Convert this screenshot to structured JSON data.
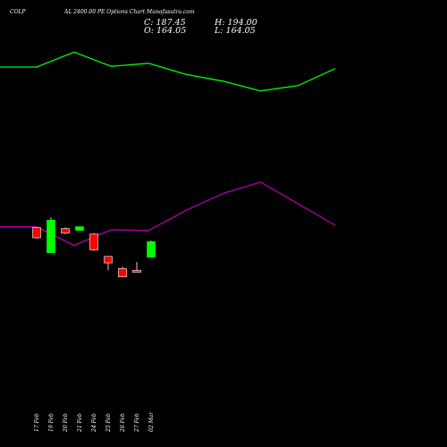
{
  "header": {
    "symbol": "COLP",
    "title": "AL 2400.00 PE Options Chart Munafasutra.com",
    "close": "C: 187.45",
    "high": "H: 194.00",
    "open": "O: 164.05",
    "low": "L: 164.05"
  },
  "chart_data": {
    "type": "candlestick",
    "title": "AL 2400.00 PE Options Chart Munafasutra.com",
    "categories": [
      "17 Feb",
      "19 Feb",
      "20 Feb",
      "21 Feb",
      "24 Feb",
      "25 Feb",
      "26 Feb",
      "27 Feb",
      "02 Mar"
    ],
    "price_range": [
      115,
      240
    ],
    "candles": [
      {
        "open": 226,
        "close": 215,
        "high": 226,
        "low": 214
      },
      {
        "open": 199,
        "close": 234,
        "high": 237,
        "low": 199
      },
      {
        "open": 225,
        "close": 220,
        "high": 226,
        "low": 219
      },
      {
        "open": 223,
        "close": 227,
        "high": 227,
        "low": 223
      },
      {
        "open": 219,
        "close": 202,
        "high": 220,
        "low": 201
      },
      {
        "open": 195,
        "close": 188,
        "high": 195,
        "low": 180
      },
      {
        "open": 182,
        "close": 173,
        "high": 184,
        "low": 173
      },
      {
        "open": 180,
        "close": 178,
        "high": 189,
        "low": 178
      },
      {
        "open": 194,
        "close": 211,
        "high": 212,
        "low": 194
      }
    ],
    "green_line": {
      "color": "#00ff00",
      "range": [
        -25,
        35
      ],
      "x": [
        "",
        "17 Feb",
        "19 Feb",
        "20 Feb",
        "21 Feb",
        "24 Feb",
        "25 Feb",
        "26 Feb",
        "27 Feb",
        "02 Mar"
      ],
      "values": [
        20,
        20,
        30,
        20.5,
        22.5,
        15,
        10.5,
        4,
        7.5,
        19
      ]
    },
    "purple_line": {
      "color": "#b000b0",
      "range": [
        -25,
        35
      ],
      "x": [
        "",
        "17 Feb",
        "19 Feb",
        "20 Feb",
        "21 Feb",
        "24 Feb",
        "25 Feb",
        "26 Feb",
        "27 Feb",
        "02 Mar"
      ],
      "values": [
        -26,
        -26,
        -38.5,
        -28,
        -28.5,
        -15,
        -3.5,
        4,
        -10.5,
        -25
      ]
    },
    "up_color": "#00ff00",
    "down_color": "#ff0000"
  }
}
